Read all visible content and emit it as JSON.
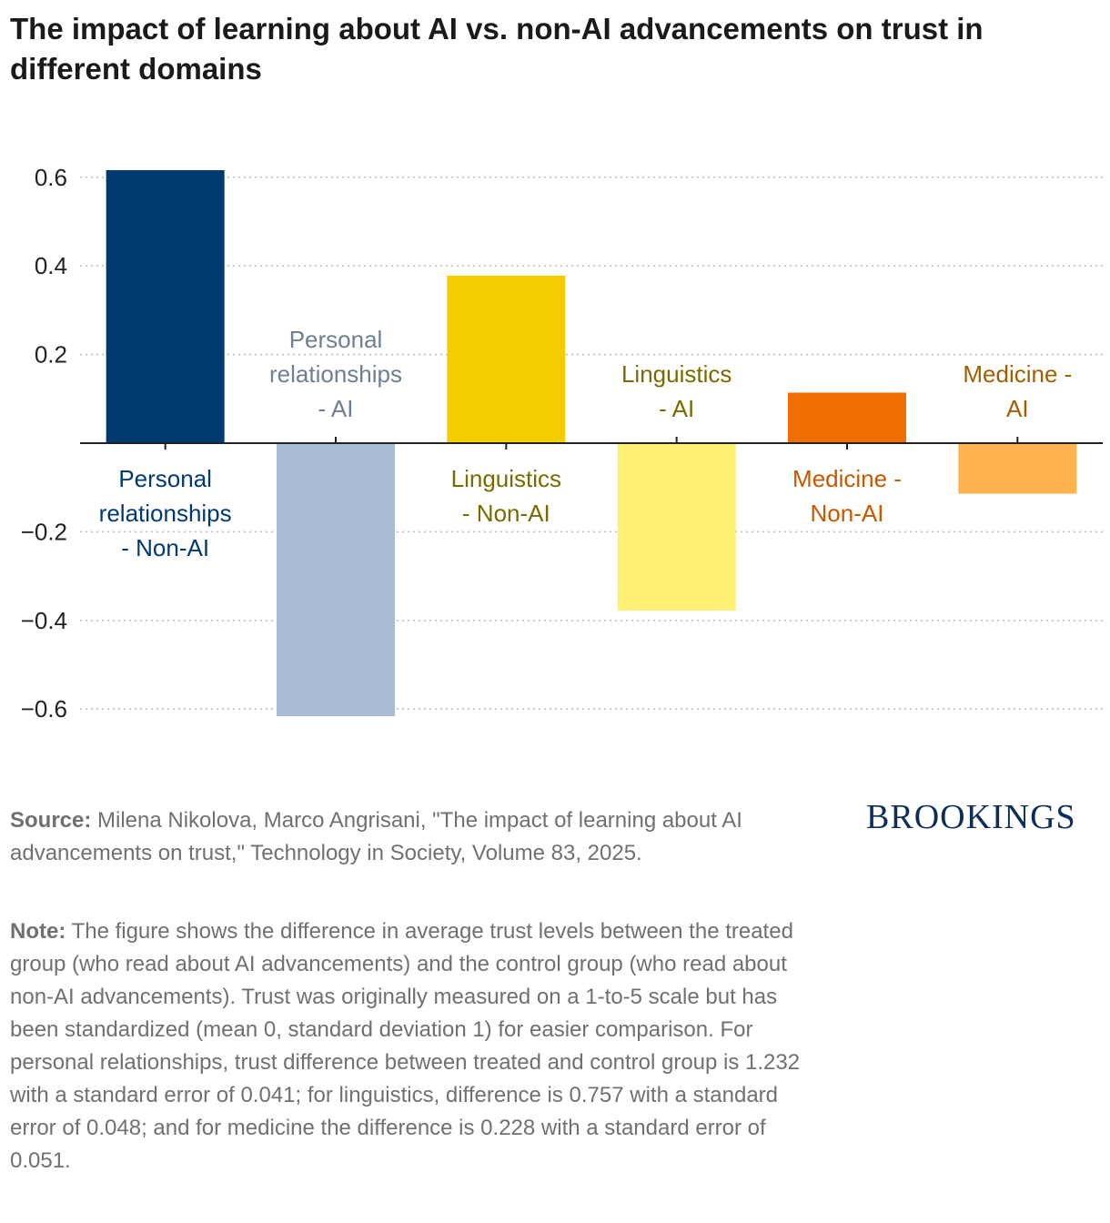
{
  "chart_data": {
    "type": "bar",
    "title": "The impact of learning about AI vs. non-AI advancements on trust in different domains",
    "ylim": [
      -0.7,
      0.7
    ],
    "yticks": [
      0.6,
      0.4,
      0.2,
      -0.2,
      -0.4,
      -0.6
    ],
    "ytick_labels": [
      "0.6",
      "0.4",
      "0.2",
      "−0.2",
      "−0.4",
      "−0.6"
    ],
    "grid": true,
    "categories": [
      "Personal relationships - Non-AI",
      "Personal relationships - AI",
      "Linguistics - Non-AI",
      "Linguistics - AI",
      "Medicine - Non-AI",
      "Medicine - AI"
    ],
    "label_lines": [
      [
        "Personal",
        "relationships",
        "- Non-AI"
      ],
      [
        "Personal",
        "relationships",
        "- AI"
      ],
      [
        "Linguistics",
        "- Non-AI"
      ],
      [
        "Linguistics",
        "- AI"
      ],
      [
        "Medicine -",
        "Non-AI"
      ],
      [
        "Medicine -",
        "AI"
      ]
    ],
    "values": [
      0.616,
      -0.616,
      0.378,
      -0.378,
      0.114,
      -0.114
    ],
    "colors": [
      "#003a70",
      "#a8bcd6",
      "#f2cd00",
      "#fff176",
      "#f06d00",
      "#ffb24d"
    ],
    "label_colors": [
      "#003a70",
      "#6f7f91",
      "#7a6a00",
      "#7a6a00",
      "#c85800",
      "#a06000"
    ]
  },
  "footer": {
    "source_label": "Source:",
    "source_text": " Milena Nikolova, Marco Angrisani, \"The impact of learning about AI advancements on trust,\" Technology in Society, Volume 83, 2025.",
    "note_label": "Note:",
    "note_text": " The figure shows the difference in average trust levels between the treated group (who read about AI advancements) and the control group (who read about non-AI advancements). Trust was originally measured on a 1-to-5 scale but has been standardized (mean 0, standard deviation 1) for easier comparison. For personal relationships, trust difference between treated and control group is 1.232 with a standard error of 0.041; for linguistics, difference is 0.757 with a standard error of 0.048; and for medicine the difference is 0.228 with a standard error of 0.051."
  },
  "brand": {
    "logo_text": "BROOKINGS"
  }
}
